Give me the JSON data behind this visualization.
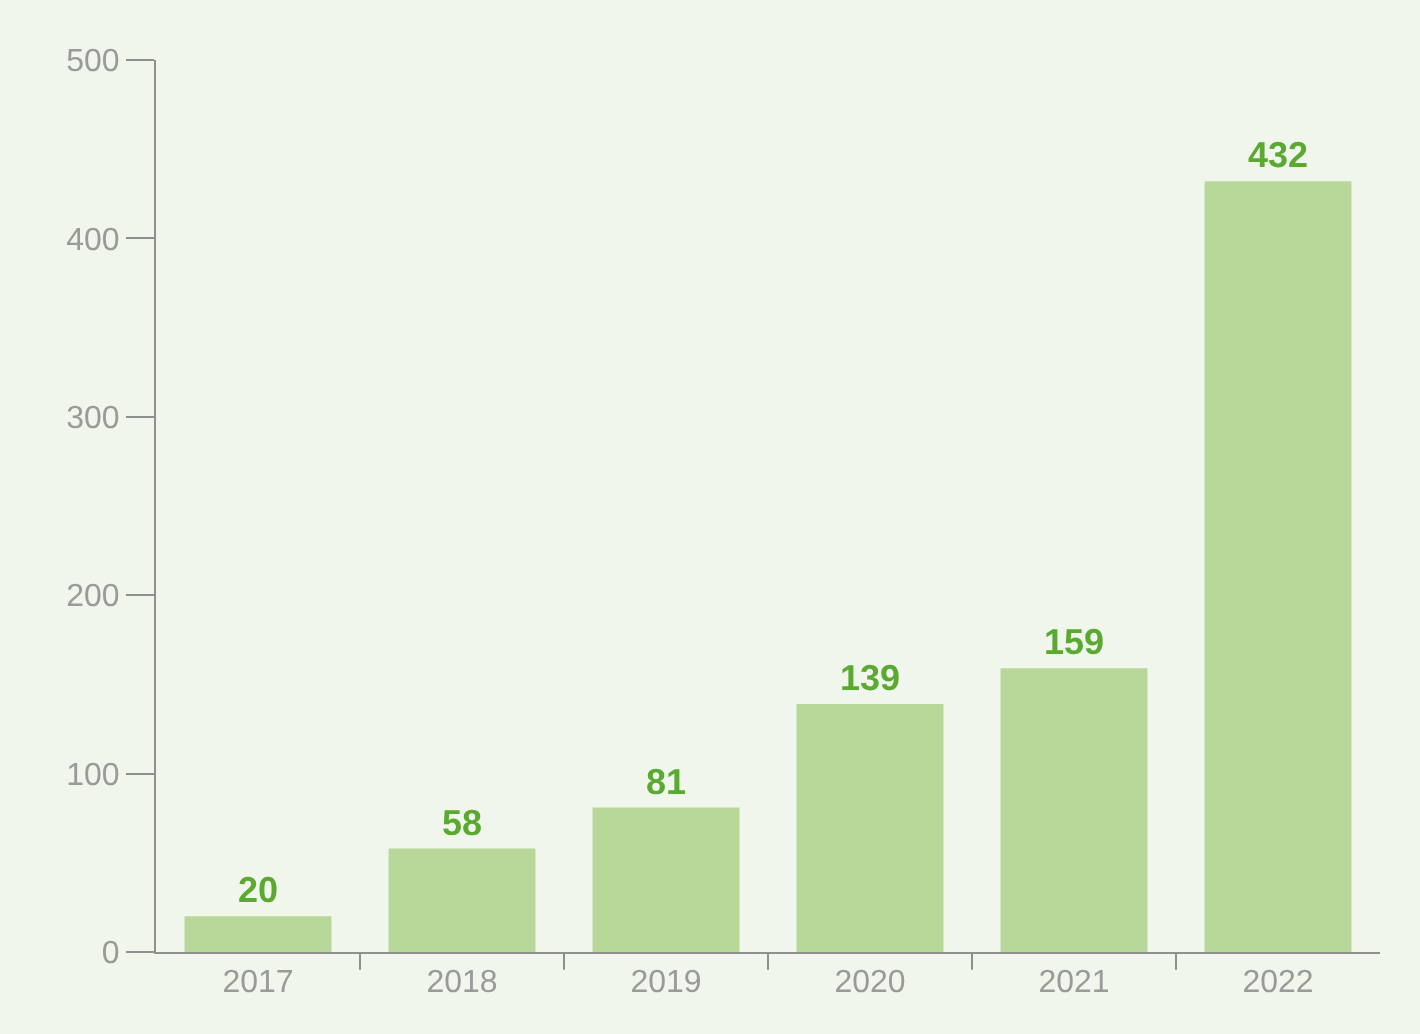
{
  "chart_data": {
    "type": "bar",
    "categories": [
      "2017",
      "2018",
      "2019",
      "2020",
      "2021",
      "2022"
    ],
    "values": [
      20,
      58,
      81,
      139,
      159,
      432
    ],
    "color": "#b8d89a",
    "ylim": [
      0,
      500
    ],
    "yticks": [
      0,
      100,
      200,
      300,
      400,
      500
    ],
    "grid": false,
    "data_labels": true,
    "legend": false
  }
}
